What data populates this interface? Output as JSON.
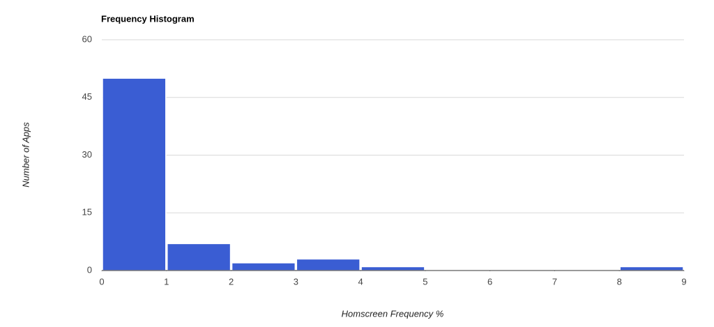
{
  "chart_data": {
    "type": "histogram",
    "title": "Frequency Histogram",
    "x_label": "Homscreen Frequency %",
    "y_label": "Number of Apps",
    "bins": [
      0,
      1,
      2,
      3,
      4,
      5,
      6,
      7,
      8,
      9
    ],
    "values": [
      50,
      7,
      2,
      3,
      1,
      0,
      0,
      0,
      1
    ],
    "color": "#3a5dd3",
    "xlim": [
      0,
      9
    ],
    "xticks": [
      0,
      1,
      2,
      3,
      4,
      5,
      6,
      7,
      8,
      9
    ],
    "ylim": [
      0,
      60
    ],
    "yticks": [
      0,
      15,
      30,
      45,
      60
    ],
    "grid": true
  }
}
